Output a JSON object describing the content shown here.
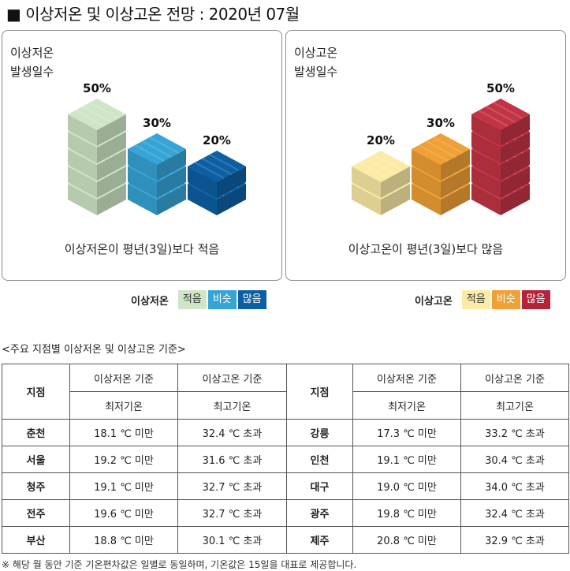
{
  "page": {
    "title": "■ 이상저온 및 이상고온 전망 : 2020년 07월"
  },
  "chart_data": [
    {
      "type": "bar",
      "title": "",
      "label_lines": [
        "이상저온",
        "발생일수"
      ],
      "categories": [
        "적음",
        "비슷",
        "많음"
      ],
      "values": [
        50,
        30,
        20
      ],
      "value_labels": [
        "50%",
        "30%",
        "20%"
      ],
      "colors": [
        "#cfe6c6",
        "#36a4d6",
        "#0d5fa3"
      ],
      "ylim": [
        0,
        50
      ],
      "caption": "이상저온이 평년(3일)보다 적음"
    },
    {
      "type": "bar",
      "title": "",
      "label_lines": [
        "이상고온",
        "발생일수"
      ],
      "categories": [
        "적음",
        "비슷",
        "많음"
      ],
      "values": [
        20,
        30,
        50
      ],
      "value_labels": [
        "20%",
        "30%",
        "50%"
      ],
      "colors": [
        "#fbeba6",
        "#f0a035",
        "#c23445"
      ],
      "ylim": [
        0,
        50
      ],
      "caption": "이상고온이 평년(3일)보다 많음"
    }
  ],
  "legends": [
    {
      "name": "이상저온",
      "items": [
        {
          "label": "적음",
          "bg": "#cfe6c6",
          "fg": "#333333"
        },
        {
          "label": "비슷",
          "bg": "#36a4d6",
          "fg": "#ffffff"
        },
        {
          "label": "많음",
          "bg": "#0d5fa3",
          "fg": "#ffffff"
        }
      ]
    },
    {
      "name": "이상고온",
      "items": [
        {
          "label": "적음",
          "bg": "#fbeba6",
          "fg": "#333333"
        },
        {
          "label": "비슷",
          "bg": "#f0a035",
          "fg": "#ffffff"
        },
        {
          "label": "많음",
          "bg": "#b3243a",
          "fg": "#ffffff"
        }
      ]
    }
  ],
  "table": {
    "subtitle": "<주요 지점별 이상저온 및 이상고온 기준>",
    "headers": {
      "station": "지점",
      "cold_basis": "이상저온 기준",
      "hot_basis": "이상고온 기준",
      "min_temp": "최저기온",
      "max_temp": "최고기온"
    },
    "rows": [
      {
        "left": {
          "name": "춘천",
          "cold": "18.1 ℃ 미만",
          "hot": "32.4 ℃ 초과"
        },
        "right": {
          "name": "강릉",
          "cold": "17.3 ℃ 미만",
          "hot": "33.2 ℃ 초과"
        }
      },
      {
        "left": {
          "name": "서울",
          "cold": "19.2 ℃ 미만",
          "hot": "31.6 ℃ 초과"
        },
        "right": {
          "name": "인천",
          "cold": "19.1 ℃ 미만",
          "hot": "30.4 ℃ 초과"
        }
      },
      {
        "left": {
          "name": "청주",
          "cold": "19.1 ℃ 미만",
          "hot": "32.7 ℃ 초과"
        },
        "right": {
          "name": "대구",
          "cold": "19.0 ℃ 미만",
          "hot": "34.0 ℃ 초과"
        }
      },
      {
        "left": {
          "name": "전주",
          "cold": "19.6 ℃ 미만",
          "hot": "32.7 ℃ 초과"
        },
        "right": {
          "name": "광주",
          "cold": "19.8 ℃ 미만",
          "hot": "32.4 ℃ 초과"
        }
      },
      {
        "left": {
          "name": "부산",
          "cold": "18.8 ℃ 미만",
          "hot": "30.1 ℃ 초과"
        },
        "right": {
          "name": "제주",
          "cold": "20.8 ℃ 미만",
          "hot": "32.9 ℃ 초과"
        }
      }
    ],
    "footnote": "※ 해당 월 동안 기준 기온편차값은 일별로 동일하며, 기온값은 15일을 대표로 제공합니다."
  }
}
